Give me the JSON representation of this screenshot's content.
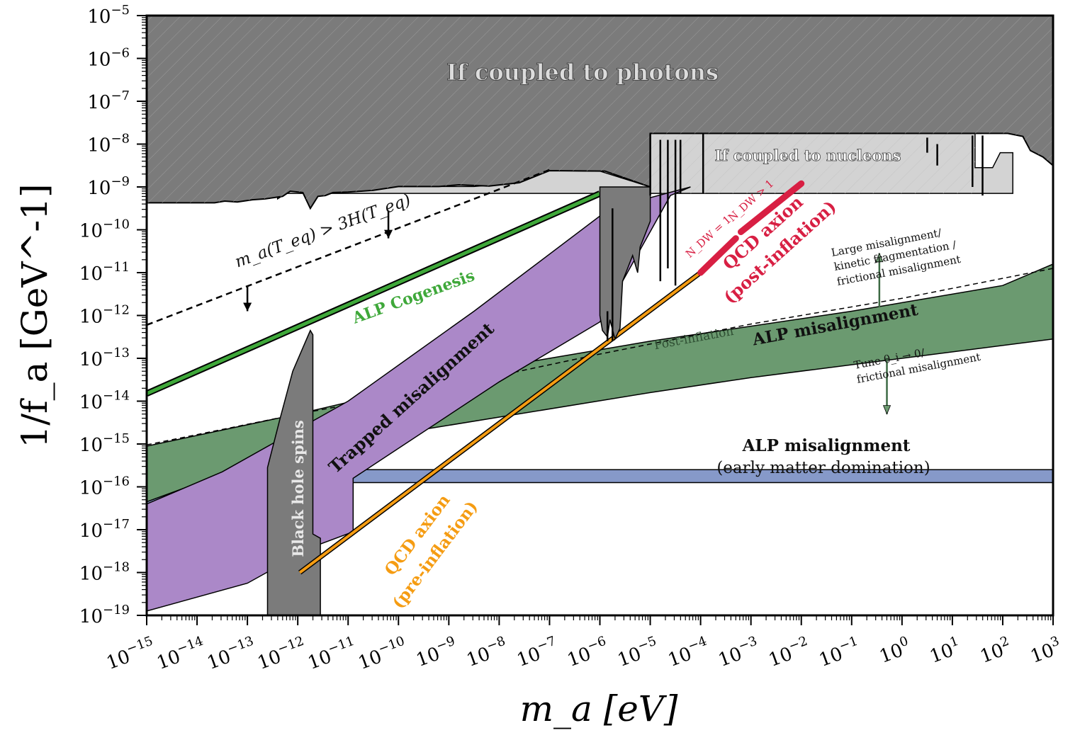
{
  "chart_data": {
    "type": "area",
    "xlabel": "m_a [eV]",
    "ylabel": "1/f_a [GeV^-1]",
    "x_scale": "log",
    "y_scale": "log",
    "xlim": [
      1e-15,
      1000
    ],
    "ylim": [
      1e-19,
      1e-05
    ],
    "grid": false,
    "x_ticks": [
      "10^-15",
      "10^-14",
      "10^-13",
      "10^-12",
      "10^-11",
      "10^-10",
      "10^-9",
      "10^-8",
      "10^-7",
      "10^-6",
      "10^-5",
      "10^-4",
      "10^-3",
      "10^-2",
      "10^-1",
      "10^0",
      "10^1",
      "10^2",
      "10^3"
    ],
    "y_ticks": [
      "10^-19",
      "10^-18",
      "10^-17",
      "10^-16",
      "10^-15",
      "10^-14",
      "10^-13",
      "10^-12",
      "10^-11",
      "10^-10",
      "10^-9",
      "10^-8",
      "10^-7",
      "10^-6",
      "10^-5"
    ],
    "colors": {
      "photons": "#7b7b7b",
      "nucleons": "#d3d3d3",
      "black_hole": "#7b7b7b",
      "cogenesis": "#3fa83a",
      "trapped": "#ab88c8",
      "misalignment": "#6b9a70",
      "emd": "#8699c9",
      "qcd_pre": "#f59c12",
      "qcd_post": "#d81f43"
    },
    "regions": [
      {
        "id": "photons",
        "label": "If coupled to photons"
      },
      {
        "id": "nucleons",
        "label": "If coupled to nucleons"
      },
      {
        "id": "black_hole",
        "label": "Black hole spins"
      },
      {
        "id": "trapped",
        "label": "Trapped misalignment"
      },
      {
        "id": "misalignment",
        "label": "ALP misalignment"
      },
      {
        "id": "emd",
        "label": "ALP misalignment",
        "sublabel": "(early matter domination)"
      }
    ],
    "lines": [
      {
        "id": "cogenesis",
        "label": "ALP Cogenesis",
        "x": [
          1e-15,
          1e-06
        ],
        "y": [
          1.5e-14,
          7e-10
        ]
      },
      {
        "id": "teq",
        "label": "m_a(T_eq) > 3H(T_eq)",
        "x": [
          1e-15,
          1e-07
        ],
        "y": [
          6e-13,
          2.5e-09
        ]
      },
      {
        "id": "qcd_pre",
        "label": "QCD axion",
        "sublabel": "(pre-inflation)",
        "x": [
          1.1e-12,
          0.0001
        ],
        "y": [
          1e-18,
          1e-11
        ]
      },
      {
        "id": "qcd_post",
        "label": "QCD axion",
        "sublabel": "(post-inflation)",
        "x": [
          0.0001,
          0.01
        ],
        "y": [
          1e-11,
          1.2e-09
        ]
      }
    ],
    "annotations": [
      {
        "id": "ndw1",
        "text": "N_DW = 1"
      },
      {
        "id": "ndw_gt1",
        "text": "N_DW > 1"
      },
      {
        "id": "post_inflation",
        "text": "Post-inflation"
      },
      {
        "id": "large_mis",
        "lines": [
          "Large misalignment/",
          "kinetic fragmentation /",
          "frictional misalignment"
        ]
      },
      {
        "id": "tune",
        "lines": [
          "Tune θ_i → 0/",
          "frictional misalignment"
        ]
      }
    ]
  }
}
